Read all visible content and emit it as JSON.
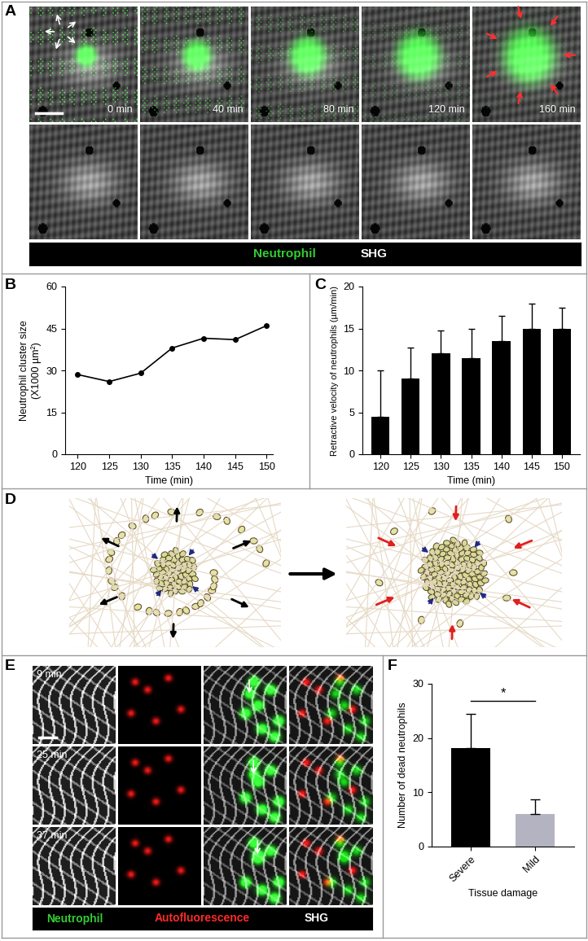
{
  "panel_A": {
    "label": "A",
    "times": [
      "0 min",
      "40 min",
      "80 min",
      "120 min",
      "160 min"
    ],
    "channels": [
      {
        "name": "Neutrophil",
        "color": "#33cc33"
      },
      {
        "name": "SHG",
        "color": "#ffffff"
      }
    ]
  },
  "chart_data": [
    {
      "panel": "B",
      "type": "line",
      "x": [
        120,
        125,
        130,
        135,
        140,
        145,
        150
      ],
      "values": [
        28.5,
        26,
        29,
        38,
        41.5,
        41,
        46
      ],
      "color": "#000000",
      "marker": "o",
      "xlabel": "Time (min)",
      "ylabel": "Neutrophil cluster size\n(X1000 µm²)",
      "xlim": [
        118,
        151
      ],
      "xticks": [
        120,
        125,
        130,
        135,
        140,
        145,
        150
      ],
      "ylim": [
        0,
        60
      ],
      "yticks": [
        0,
        15,
        30,
        45,
        60
      ]
    },
    {
      "panel": "C",
      "type": "bar",
      "categories": [
        "120",
        "125",
        "130",
        "135",
        "140",
        "145",
        "150"
      ],
      "values": [
        4.5,
        9,
        12,
        11.5,
        13.5,
        15,
        15
      ],
      "errors": [
        5.5,
        3.7,
        2.8,
        3.5,
        3,
        3,
        2.5
      ],
      "color": "#000000",
      "xlabel": "Time (min)",
      "ylabel": "Retractive velocity of neutrophils (µm/min)",
      "ylim": [
        0,
        20
      ],
      "yticks": [
        0,
        5,
        10,
        15,
        20
      ]
    },
    {
      "panel": "F",
      "type": "bar",
      "categories": [
        "Severe",
        "Mild"
      ],
      "values": [
        18.2,
        6
      ],
      "errors": [
        6.2,
        2.7
      ],
      "colors": [
        "#000000",
        "#b3b3c2"
      ],
      "xlabel": "Tissue damage",
      "ylabel": "Number of dead neutrophils",
      "ylim": [
        0,
        30
      ],
      "yticks": [
        0,
        10,
        20,
        30
      ],
      "annotations": [
        "*"
      ]
    }
  ],
  "panel_D": {
    "label": "D"
  },
  "panel_E": {
    "label": "E",
    "times": [
      "9 min",
      "25 min",
      "37 min"
    ],
    "channels": [
      {
        "name": "Neutrophil",
        "color": "#33cc33"
      },
      {
        "name": "Autofluorescence",
        "color": "#ff2a2a"
      },
      {
        "name": "SHG",
        "color": "#ffffff"
      }
    ]
  }
}
